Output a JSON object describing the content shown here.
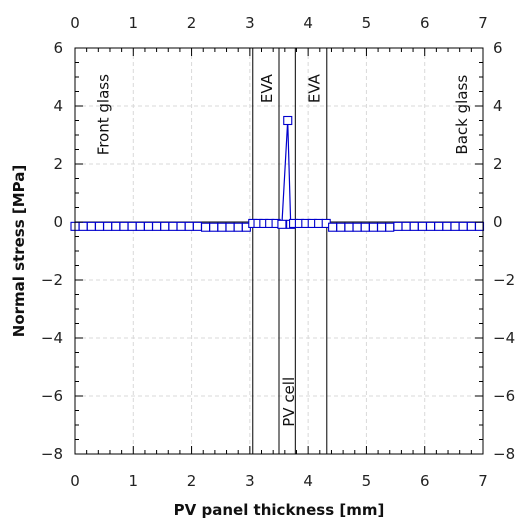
{
  "chart_data": {
    "type": "line",
    "title": "",
    "xlabel": "PV panel thickness [mm]",
    "ylabel": "Normal stress [MPa]",
    "xlim": [
      0,
      7
    ],
    "ylim": [
      -8,
      6
    ],
    "x_ticks": [
      0,
      1,
      2,
      3,
      4,
      5,
      6,
      7
    ],
    "y_ticks": [
      -8,
      -6,
      -4,
      -2,
      0,
      2,
      4,
      6
    ],
    "x_tick_labels": [
      "0",
      "1",
      "2",
      "3",
      "4",
      "5",
      "6",
      "7"
    ],
    "y_tick_labels": [
      "−8",
      "−6",
      "−4",
      "−2",
      "0",
      "2",
      "4",
      "6"
    ],
    "top_axis_mirrors_bottom": true,
    "right_axis_mirrors_left": true,
    "grid": true,
    "legend": "none",
    "series": [
      {
        "marker": "open-square",
        "color": "#0000cc",
        "x": [
          0.0,
          0.14,
          0.28,
          0.42,
          0.56,
          0.7,
          0.84,
          0.98,
          1.12,
          1.26,
          1.4,
          1.54,
          1.68,
          1.82,
          1.96,
          2.1,
          2.24,
          2.38,
          2.52,
          2.66,
          2.8,
          2.94,
          3.05,
          3.14,
          3.24,
          3.34,
          3.45,
          3.55,
          3.65,
          3.7,
          3.75,
          3.85,
          3.96,
          4.07,
          4.18,
          4.31,
          4.42,
          4.56,
          4.7,
          4.84,
          4.98,
          5.12,
          5.26,
          5.4,
          5.54,
          5.68,
          5.82,
          5.96,
          6.1,
          6.24,
          6.38,
          6.52,
          6.66,
          6.8,
          6.94
        ],
        "y": [
          -0.15,
          -0.15,
          -0.15,
          -0.15,
          -0.15,
          -0.15,
          -0.15,
          -0.15,
          -0.15,
          -0.15,
          -0.15,
          -0.15,
          -0.15,
          -0.15,
          -0.15,
          -0.15,
          -0.18,
          -0.18,
          -0.18,
          -0.18,
          -0.18,
          -0.18,
          -0.05,
          -0.05,
          -0.05,
          -0.05,
          -0.05,
          -0.08,
          3.5,
          -0.08,
          -0.05,
          -0.05,
          -0.05,
          -0.05,
          -0.05,
          -0.05,
          -0.18,
          -0.18,
          -0.18,
          -0.18,
          -0.18,
          -0.18,
          -0.18,
          -0.18,
          -0.15,
          -0.15,
          -0.15,
          -0.15,
          -0.15,
          -0.15,
          -0.15,
          -0.15,
          -0.15,
          -0.15,
          -0.15
        ]
      }
    ],
    "layer_boundaries": [
      3.05,
      3.5,
      3.78,
      4.32
    ],
    "annotations": [
      {
        "text": "Front glass",
        "x": 0.5,
        "y": 3.7,
        "rotate": -90
      },
      {
        "text": "EVA",
        "x": 3.3,
        "y": 4.6,
        "rotate": -90
      },
      {
        "text": "EVA",
        "x": 4.12,
        "y": 4.6,
        "rotate": -90
      },
      {
        "text": "PV cell",
        "x": 3.68,
        "y": -6.2,
        "rotate": -90
      },
      {
        "text": "Back glass",
        "x": 6.65,
        "y": 3.7,
        "rotate": -90
      }
    ]
  }
}
